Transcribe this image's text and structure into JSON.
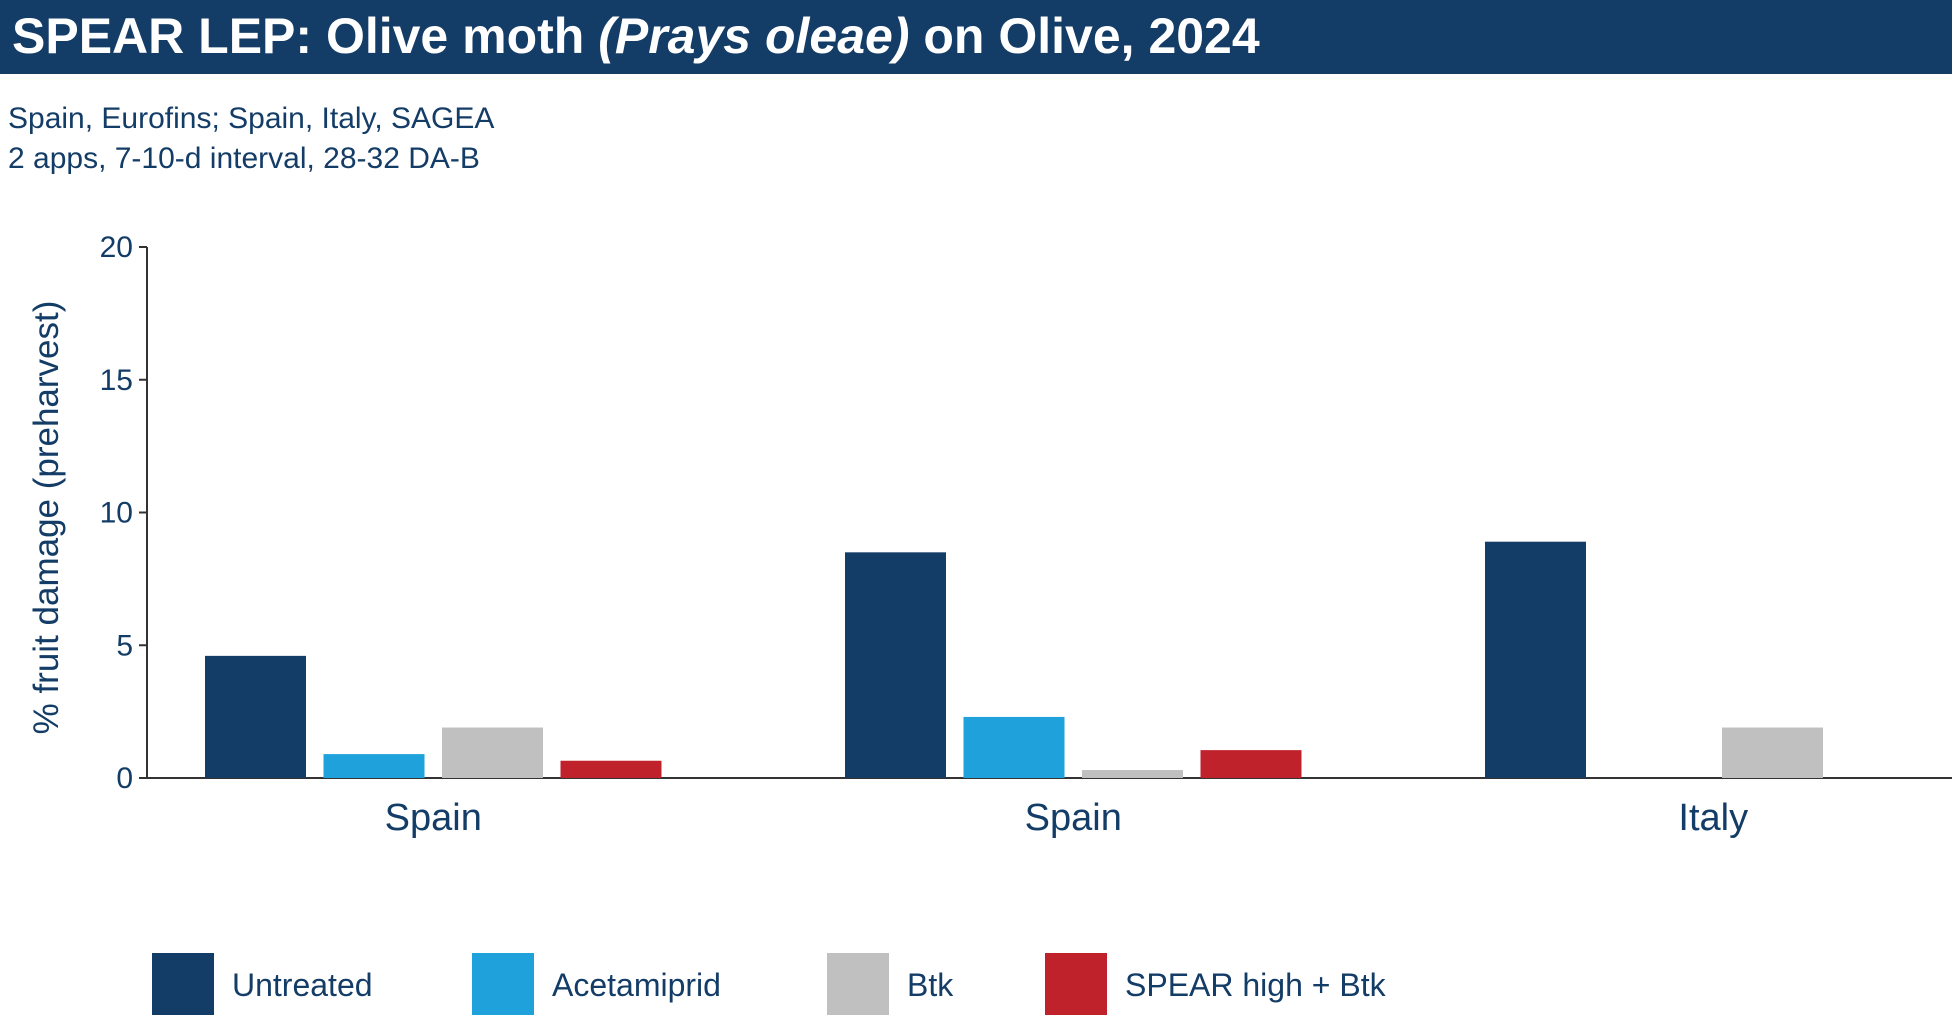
{
  "header": {
    "title_prefix": "SPEAR LEP: Olive moth ",
    "title_italic": "(Prays oleae)",
    "title_suffix": " on Olive, 2024"
  },
  "subtitle": {
    "line1": "Spain, Eurofins; Spain, Italy, SAGEA",
    "line2": "2 apps, 7-10-d interval,  28-32 DA-B"
  },
  "colors": {
    "title_bar": "#133c66",
    "text": "#133c66"
  },
  "chart_data": {
    "type": "bar",
    "title": "",
    "xlabel": "",
    "ylabel": "% fruit damage (preharvest)",
    "ylim": [
      0,
      20
    ],
    "yticks": [
      "0",
      "5",
      "10",
      "15",
      "20"
    ],
    "categories": [
      "Spain",
      "Spain",
      "Italy"
    ],
    "series": [
      {
        "name": "Untreated",
        "color": "#133c66",
        "values": [
          4.6,
          8.5,
          8.9
        ]
      },
      {
        "name": "Acetamiprid",
        "color": "#1fa2dc",
        "values": [
          0.9,
          2.3,
          null
        ]
      },
      {
        "name": "Btk",
        "color": "#c0c0c0",
        "values": [
          1.9,
          0.3,
          1.9
        ]
      },
      {
        "name": "SPEAR high + Btk",
        "color": "#c0222c",
        "values": [
          0.65,
          1.05,
          null
        ]
      }
    ],
    "legend_position": "bottom",
    "grid": false
  }
}
